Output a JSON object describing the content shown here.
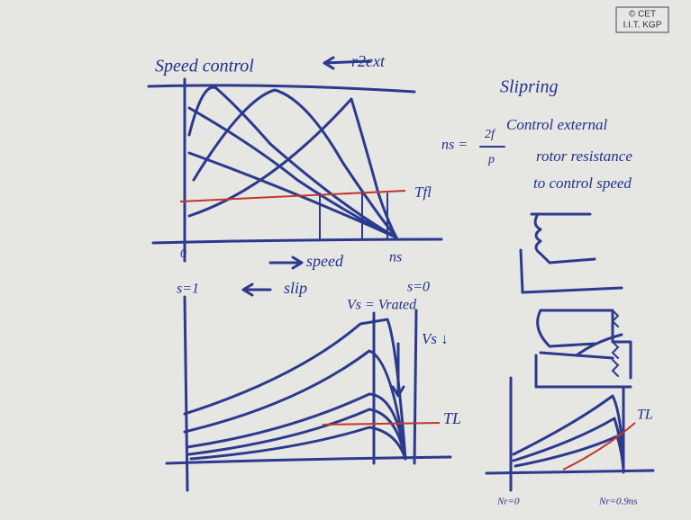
{
  "logo": {
    "line1": "© CET",
    "line2": "I.I.T. KGP"
  },
  "top_graph": {
    "title": "Speed control",
    "arrow_label": "r2ext",
    "origin": "0",
    "x_label": "speed",
    "x_end": "ns",
    "load_label": "Tfl"
  },
  "notes": {
    "heading": "Slipring",
    "lines": [
      "Control external",
      "rotor resistance",
      "to control speed"
    ],
    "formula": {
      "lhs": "ns =",
      "numerator": "2f",
      "denominator": "p"
    }
  },
  "bottom_graph": {
    "left_label": "s=1",
    "x_label": "slip",
    "right_label": "s=0",
    "curve_label": "Vs = Vrated",
    "arrow_label": "Vs ↓",
    "load_label": "TL"
  },
  "small_graph": {
    "load_label": "TL",
    "left_label": "Nr=0",
    "right_label": "Nr=0.9ns"
  }
}
